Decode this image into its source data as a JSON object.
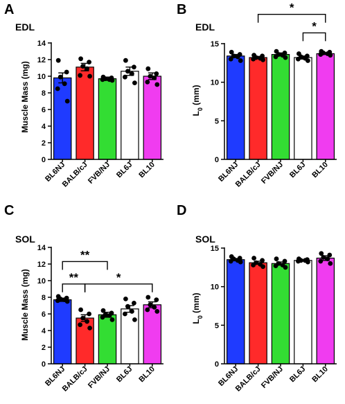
{
  "chart_data": [
    {
      "type": "bar",
      "panel": "A",
      "title": "EDL",
      "xlabel": "",
      "ylabel": "Muscle Mass (mg)",
      "ylim": [
        0,
        14
      ],
      "yticks": [
        0,
        2,
        4,
        6,
        8,
        10,
        12,
        14
      ],
      "categories": [
        "BL6NJ",
        "BALB/cJ",
        "FVB/NJ",
        "BL6J",
        "BL10"
      ],
      "colors": [
        "#1f3bff",
        "#ff2a2a",
        "#33dd33",
        "#ffffff",
        "#f03cf0"
      ],
      "values": [
        9.8,
        11.1,
        9.7,
        10.6,
        10.0
      ],
      "errors": [
        0.6,
        0.45,
        0.2,
        0.5,
        0.4
      ],
      "points": [
        [
          11.9,
          10.5,
          9.9,
          9.1,
          8.5,
          7.0
        ],
        [
          12.1,
          11.7,
          11.2,
          10.9,
          10.1,
          10.0
        ],
        [
          9.9,
          9.8,
          9.7,
          9.6,
          9.6,
          9.5
        ],
        [
          11.9,
          11.1,
          10.6,
          10.3,
          9.9,
          9.2
        ],
        [
          10.9,
          10.3,
          10.0,
          9.8,
          9.3,
          9.0
        ]
      ],
      "significance": []
    },
    {
      "type": "bar",
      "panel": "B",
      "title": "EDL",
      "xlabel": "",
      "ylabel": "L0 (mm)",
      "ylabel_main": "L",
      "ylabel_sub": "0",
      "ylabel_rest": " (mm)",
      "ylim": [
        0,
        15
      ],
      "yticks": [
        0,
        5,
        10,
        15
      ],
      "categories": [
        "BL6NJ",
        "BALB/cJ",
        "FVB/NJ",
        "BL6J",
        "BL10"
      ],
      "colors": [
        "#1f3bff",
        "#ff2a2a",
        "#33dd33",
        "#ffffff",
        "#f03cf0"
      ],
      "values": [
        13.4,
        13.2,
        13.6,
        13.2,
        13.7
      ],
      "errors": [
        0.2,
        0.15,
        0.2,
        0.2,
        0.1
      ],
      "points": [
        [
          13.9,
          13.6,
          13.4,
          13.3,
          13.0,
          12.8
        ],
        [
          13.5,
          13.4,
          13.2,
          13.1,
          13.0,
          12.9
        ],
        [
          14.0,
          13.8,
          13.6,
          13.5,
          13.3,
          13.2
        ],
        [
          13.7,
          13.4,
          13.3,
          13.1,
          13.0,
          12.8
        ],
        [
          14.0,
          13.9,
          13.8,
          13.7,
          13.6,
          13.5
        ]
      ],
      "significance": [
        {
          "from": 1,
          "to": 4,
          "level": 18.8,
          "label": "*"
        },
        {
          "from": 3,
          "to": 4,
          "level": 16.4,
          "label": "*"
        }
      ]
    },
    {
      "type": "bar",
      "panel": "C",
      "title": "SOL",
      "xlabel": "",
      "ylabel": "Muscle Mass (mg)",
      "ylim": [
        0,
        14
      ],
      "yticks": [
        0,
        2,
        4,
        6,
        8,
        10,
        12,
        14
      ],
      "categories": [
        "BL6NJ",
        "BALB/cJ",
        "FVB/NJ",
        "BL6J",
        "BL10"
      ],
      "colors": [
        "#1f3bff",
        "#ff2a2a",
        "#33dd33",
        "#ffffff",
        "#f03cf0"
      ],
      "values": [
        7.7,
        5.5,
        5.9,
        6.6,
        7.1
      ],
      "errors": [
        0.2,
        0.4,
        0.3,
        0.4,
        0.35
      ],
      "points": [
        [
          8.1,
          7.9,
          7.8,
          7.7,
          7.6,
          7.5
        ],
        [
          6.5,
          6.0,
          5.5,
          5.1,
          4.7,
          4.3
        ],
        [
          6.4,
          6.1,
          5.9,
          5.8,
          5.6,
          5.3
        ],
        [
          7.8,
          7.3,
          6.9,
          6.3,
          6.0,
          5.3
        ],
        [
          8.0,
          7.7,
          7.1,
          6.8,
          6.5,
          6.3
        ]
      ],
      "significance": [
        {
          "from": 0,
          "to": 2,
          "level": 12.3,
          "label": "**"
        },
        {
          "from": 0,
          "to": 1,
          "level": 9.6,
          "label": "**"
        },
        {
          "from": 1,
          "to": 4,
          "level": 9.6,
          "label": "*"
        }
      ]
    },
    {
      "type": "bar",
      "panel": "D",
      "title": "SOL",
      "xlabel": "",
      "ylabel": "L0 (mm)",
      "ylabel_main": "L",
      "ylabel_sub": "0",
      "ylabel_rest": " (mm)",
      "ylim": [
        0,
        15
      ],
      "yticks": [
        0,
        5,
        10,
        15
      ],
      "categories": [
        "BL6NJ",
        "BALB/cJ",
        "FVB/NJ",
        "BL6J",
        "BL10"
      ],
      "colors": [
        "#1f3bff",
        "#ff2a2a",
        "#33dd33",
        "#ffffff",
        "#f03cf0"
      ],
      "values": [
        13.5,
        13.1,
        13.0,
        13.4,
        13.7
      ],
      "errors": [
        0.15,
        0.2,
        0.2,
        0.1,
        0.3
      ],
      "points": [
        [
          13.9,
          13.7,
          13.6,
          13.4,
          13.3,
          13.2
        ],
        [
          13.7,
          13.4,
          13.1,
          12.9,
          12.8,
          12.6
        ],
        [
          13.6,
          13.3,
          13.0,
          12.8,
          12.7,
          12.5
        ],
        [
          13.6,
          13.5,
          13.4,
          13.4,
          13.3,
          13.2
        ],
        [
          14.3,
          14.1,
          13.8,
          13.6,
          13.3,
          13.0
        ]
      ],
      "significance": []
    }
  ]
}
